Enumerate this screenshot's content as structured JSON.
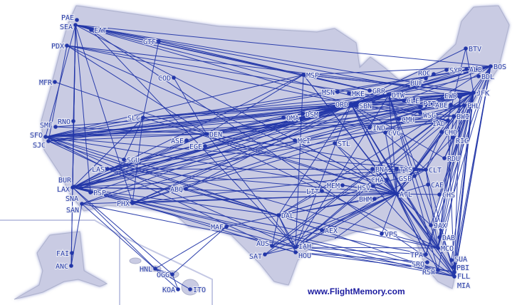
{
  "map": {
    "land_color": "#c9cbe3",
    "route_color": "#2236a8",
    "credit": "www.FlightMemory.com",
    "airports": [
      "PAE",
      "SEA",
      "EAT",
      "PDX",
      "GTF",
      "MFR",
      "COD",
      "SLC",
      "RNO",
      "SMF",
      "SFO",
      "SJC",
      "DEN",
      "EGE",
      "ASE",
      "SGU",
      "LAS",
      "BUR",
      "LAX",
      "SNA",
      "PSP",
      "SAN",
      "ABQ",
      "PHX",
      "MAF",
      "FAI",
      "ANC",
      "HNL",
      "OGG",
      "KOA",
      "ITO",
      "MSP",
      "MSN",
      "MKE",
      "GRR",
      "DTW",
      "ORD",
      "SBN",
      "CLE",
      "PIT",
      "WSG",
      "CMH",
      "IND",
      "CVG",
      "OMA",
      "DSM",
      "MCI",
      "STL",
      "BTV",
      "SYR",
      "ALB",
      "BOS",
      "BDL",
      "ROC",
      "BUF",
      "JFK",
      "EWR",
      "PHL",
      "ABE",
      "BWI",
      "IAD",
      "CHO",
      "RIC",
      "RDU",
      "CLT",
      "GSP",
      "TYS",
      "BNA",
      "CHA",
      "HSV",
      "MEM",
      "LIT",
      "ATL",
      "BHM",
      "CAE",
      "CHS",
      "DAL",
      "AEX",
      "VPS",
      "JAX",
      "DAB",
      "MCO",
      "TPA",
      "SRQ",
      "RSW",
      "SUA",
      "PBI",
      "FLL",
      "MIA",
      "AUS",
      "SAT",
      "IAH",
      "HOU"
    ],
    "routes": [
      [
        "SEA",
        "ORD"
      ],
      [
        "SEA",
        "JFK"
      ],
      [
        "SEA",
        "DTW"
      ],
      [
        "SEA",
        "MSP"
      ],
      [
        "SEA",
        "BOS"
      ],
      [
        "SEA",
        "SFO"
      ],
      [
        "SEA",
        "LAX"
      ],
      [
        "SEA",
        "ANC"
      ],
      [
        "SEA",
        "PHX"
      ],
      [
        "SEA",
        "ATL"
      ],
      [
        "SEA",
        "EWR"
      ],
      [
        "SEA",
        "IAD"
      ],
      [
        "PDX",
        "ORD"
      ],
      [
        "PDX",
        "DEN"
      ],
      [
        "PDX",
        "JFK"
      ],
      [
        "PDX",
        "SJC"
      ],
      [
        "PDX",
        "ATL"
      ],
      [
        "PDX",
        "CLE"
      ],
      [
        "EAT",
        "SEA"
      ],
      [
        "EAT",
        "MIA"
      ],
      [
        "EAT",
        "IAH"
      ],
      [
        "GTF",
        "SLC"
      ],
      [
        "GTF",
        "MSP"
      ],
      [
        "GTF",
        "SEA"
      ],
      [
        "GTF",
        "DTW"
      ],
      [
        "MFR",
        "DEN"
      ],
      [
        "COD",
        "DEN"
      ],
      [
        "SLC",
        "ORD"
      ],
      [
        "SLC",
        "ATL"
      ],
      [
        "SLC",
        "JFK"
      ],
      [
        "SLC",
        "LAX"
      ],
      [
        "SLC",
        "SFO"
      ],
      [
        "SLC",
        "DTW"
      ],
      [
        "SLC",
        "PHX"
      ],
      [
        "RNO",
        "LAX"
      ],
      [
        "RNO",
        "SEA"
      ],
      [
        "SMF",
        "ORD"
      ],
      [
        "SMF",
        "DEN"
      ],
      [
        "SFO",
        "JFK"
      ],
      [
        "SFO",
        "ORD"
      ],
      [
        "SFO",
        "EWR"
      ],
      [
        "SFO",
        "IAD"
      ],
      [
        "SFO",
        "BOS"
      ],
      [
        "SFO",
        "DEN"
      ],
      [
        "SFO",
        "ATL"
      ],
      [
        "SFO",
        "DFW"
      ],
      [
        "SFO",
        "PHL"
      ],
      [
        "SFO",
        "CLT"
      ],
      [
        "SFO",
        "IAH"
      ],
      [
        "SFO",
        "LAS"
      ],
      [
        "SFO",
        "MSP"
      ],
      [
        "SFO",
        "BWI"
      ],
      [
        "SFO",
        "MCO"
      ],
      [
        "SJC",
        "ORD"
      ],
      [
        "SJC",
        "DEN"
      ],
      [
        "SJC",
        "AUS"
      ],
      [
        "SJC",
        "JFK"
      ],
      [
        "SJC",
        "BOS"
      ],
      [
        "SJC",
        "DAL"
      ],
      [
        "DEN",
        "JFK"
      ],
      [
        "DEN",
        "ORD"
      ],
      [
        "DEN",
        "ATL"
      ],
      [
        "DEN",
        "IAD"
      ],
      [
        "DEN",
        "DTW"
      ],
      [
        "DEN",
        "BOS"
      ],
      [
        "DEN",
        "LAX"
      ],
      [
        "DEN",
        "MSP"
      ],
      [
        "DEN",
        "EWR"
      ],
      [
        "DEN",
        "IAH"
      ],
      [
        "DEN",
        "CLT"
      ],
      [
        "DEN",
        "PHL"
      ],
      [
        "DEN",
        "MCO"
      ],
      [
        "EGE",
        "ORD"
      ],
      [
        "ASE",
        "DEN"
      ],
      [
        "ASE",
        "LAX"
      ],
      [
        "LAS",
        "JFK"
      ],
      [
        "LAS",
        "ORD"
      ],
      [
        "LAS",
        "ATL"
      ],
      [
        "LAS",
        "DTW"
      ],
      [
        "LAS",
        "BOS"
      ],
      [
        "LAS",
        "CLT"
      ],
      [
        "LAS",
        "IAD"
      ],
      [
        "LAS",
        "DAL"
      ],
      [
        "SGU",
        "SLC"
      ],
      [
        "LAX",
        "JFK"
      ],
      [
        "LAX",
        "ORD"
      ],
      [
        "LAX",
        "ATL"
      ],
      [
        "LAX",
        "IAD"
      ],
      [
        "LAX",
        "BOS"
      ],
      [
        "LAX",
        "MIA"
      ],
      [
        "LAX",
        "IAH"
      ],
      [
        "LAX",
        "DAL"
      ],
      [
        "LAX",
        "HNL"
      ],
      [
        "LAX",
        "OGG"
      ],
      [
        "LAX",
        "DTW"
      ],
      [
        "LAX",
        "CLT"
      ],
      [
        "LAX",
        "PHL"
      ],
      [
        "LAX",
        "EWR"
      ],
      [
        "LAX",
        "MSP"
      ],
      [
        "LAX",
        "FLL"
      ],
      [
        "LAX",
        "TPA"
      ],
      [
        "LAX",
        "PHX"
      ],
      [
        "LAX",
        "ABQ"
      ],
      [
        "LAX",
        "SEA"
      ],
      [
        "BUR",
        "LAS"
      ],
      [
        "SNA",
        "ORD"
      ],
      [
        "SNA",
        "DEN"
      ],
      [
        "PSP",
        "SEA"
      ],
      [
        "PSP",
        "ORD"
      ],
      [
        "SAN",
        "ORD"
      ],
      [
        "SAN",
        "ATL"
      ],
      [
        "SAN",
        "JFK"
      ],
      [
        "SAN",
        "KOA"
      ],
      [
        "SAN",
        "ANC"
      ],
      [
        "SAN",
        "IAH"
      ],
      [
        "PHX",
        "ORD"
      ],
      [
        "PHX",
        "JFK"
      ],
      [
        "PHX",
        "ATL"
      ],
      [
        "PHX",
        "PHL"
      ],
      [
        "PHX",
        "CLT"
      ],
      [
        "PHX",
        "DTW"
      ],
      [
        "PHX",
        "HOU"
      ],
      [
        "ABQ",
        "DAL"
      ],
      [
        "ABQ",
        "ORD"
      ],
      [
        "MAF",
        "HNL"
      ],
      [
        "MAF",
        "OGG"
      ],
      [
        "MAF",
        "DAL"
      ],
      [
        "FAI",
        "ANC"
      ],
      [
        "ANC",
        "SEA"
      ],
      [
        "HNL",
        "OGG"
      ],
      [
        "OGG",
        "KOA"
      ],
      [
        "HNL",
        "ITO"
      ],
      [
        "MSP",
        "JFK"
      ],
      [
        "MSP",
        "ATL"
      ],
      [
        "MSP",
        "BOS"
      ],
      [
        "MSP",
        "DTW"
      ],
      [
        "MSP",
        "IAH"
      ],
      [
        "MSP",
        "MCO"
      ],
      [
        "MSP",
        "LGA"
      ],
      [
        "ORD",
        "JFK"
      ],
      [
        "ORD",
        "BOS"
      ],
      [
        "ORD",
        "ATL"
      ],
      [
        "ORD",
        "MIA"
      ],
      [
        "ORD",
        "DCA"
      ],
      [
        "ORD",
        "PHL"
      ],
      [
        "ORD",
        "MCO"
      ],
      [
        "ORD",
        "TPA"
      ],
      [
        "ORD",
        "FLL"
      ],
      [
        "ORD",
        "IAH"
      ],
      [
        "ORD",
        "DAL"
      ],
      [
        "ORD",
        "CLT"
      ],
      [
        "ORD",
        "RDU"
      ],
      [
        "ORD",
        "BWI"
      ],
      [
        "ORD",
        "EWR"
      ],
      [
        "ORD",
        "BDL"
      ],
      [
        "ORD",
        "SYR"
      ],
      [
        "ORD",
        "ALB"
      ],
      [
        "ORD",
        "BTV"
      ],
      [
        "DTW",
        "JFK"
      ],
      [
        "DTW",
        "BOS"
      ],
      [
        "DTW",
        "ATL"
      ],
      [
        "DTW",
        "MCO"
      ],
      [
        "DTW",
        "RSW"
      ],
      [
        "DTW",
        "PBI"
      ],
      [
        "DTW",
        "IAH"
      ],
      [
        "CLE",
        "BOS"
      ],
      [
        "CLE",
        "JFK"
      ],
      [
        "PIT",
        "JFK"
      ],
      [
        "CMH",
        "IAD"
      ],
      [
        "IND",
        "JFK"
      ],
      [
        "CVG",
        "ATL"
      ],
      [
        "CVG",
        "BOS"
      ],
      [
        "OMA",
        "ORD"
      ],
      [
        "DSM",
        "ORD"
      ],
      [
        "MCI",
        "ATL"
      ],
      [
        "MCI",
        "JFK"
      ],
      [
        "STL",
        "ATL"
      ],
      [
        "STL",
        "MIA"
      ],
      [
        "BTV",
        "JFK"
      ],
      [
        "BTV",
        "IAD"
      ],
      [
        "BOS",
        "ATL"
      ],
      [
        "BOS",
        "MIA"
      ],
      [
        "BOS",
        "FLL"
      ],
      [
        "BOS",
        "MCO"
      ],
      [
        "BOS",
        "TPA"
      ],
      [
        "BOS",
        "CLT"
      ],
      [
        "BOS",
        "RDU"
      ],
      [
        "BOS",
        "PBI"
      ],
      [
        "JFK",
        "ATL"
      ],
      [
        "JFK",
        "MIA"
      ],
      [
        "JFK",
        "FLL"
      ],
      [
        "JFK",
        "MCO"
      ],
      [
        "JFK",
        "TPA"
      ],
      [
        "JFK",
        "PBI"
      ],
      [
        "JFK",
        "RSW"
      ],
      [
        "JFK",
        "SUA"
      ],
      [
        "JFK",
        "CHS"
      ],
      [
        "JFK",
        "JAX"
      ],
      [
        "JFK",
        "RDU"
      ],
      [
        "JFK",
        "IAH"
      ],
      [
        "JFK",
        "DAL"
      ],
      [
        "JFK",
        "AUS"
      ],
      [
        "JFK",
        "SAT"
      ],
      [
        "EWR",
        "MCO"
      ],
      [
        "EWR",
        "FLL"
      ],
      [
        "PHL",
        "MCO"
      ],
      [
        "PHL",
        "ATL"
      ],
      [
        "BWI",
        "ATL"
      ],
      [
        "BWI",
        "MCO"
      ],
      [
        "IAD",
        "ATL"
      ],
      [
        "IAD",
        "IAH"
      ],
      [
        "IAD",
        "MIA"
      ],
      [
        "CHO",
        "CLT"
      ],
      [
        "RIC",
        "ATL"
      ],
      [
        "CLT",
        "MIA"
      ],
      [
        "CLT",
        "MCO"
      ],
      [
        "CLT",
        "DAL"
      ],
      [
        "CLT",
        "IAH"
      ],
      [
        "GSP",
        "ATL"
      ],
      [
        "TYS",
        "ATL"
      ],
      [
        "BNA",
        "ATL"
      ],
      [
        "CHA",
        "ATL"
      ],
      [
        "HSV",
        "DAL"
      ],
      [
        "MEM",
        "ATL"
      ],
      [
        "LIT",
        "DAL"
      ],
      [
        "ATL",
        "MIA"
      ],
      [
        "ATL",
        "MCO"
      ],
      [
        "ATL",
        "TPA"
      ],
      [
        "ATL",
        "FLL"
      ],
      [
        "ATL",
        "DAL"
      ],
      [
        "ATL",
        "IAH"
      ],
      [
        "ATL",
        "AUS"
      ],
      [
        "ATL",
        "SAT"
      ],
      [
        "ATL",
        "MSY"
      ],
      [
        "ATL",
        "VPS"
      ],
      [
        "ATL",
        "JAX"
      ],
      [
        "ATL",
        "RSW"
      ],
      [
        "ATL",
        "CHS"
      ],
      [
        "ATL",
        "CAE"
      ],
      [
        "BHM",
        "DAL"
      ],
      [
        "DAL",
        "IAH"
      ],
      [
        "DAL",
        "HOU"
      ],
      [
        "DAL",
        "AUS"
      ],
      [
        "DAL",
        "MIA"
      ],
      [
        "DAL",
        "MCO"
      ],
      [
        "AEX",
        "ATL"
      ],
      [
        "AEX",
        "DAL"
      ],
      [
        "IAH",
        "MCO"
      ],
      [
        "IAH",
        "TPA"
      ],
      [
        "IAH",
        "MIA"
      ],
      [
        "IAH",
        "FLL"
      ],
      [
        "HOU",
        "RSW"
      ],
      [
        "HOU",
        "SRQ"
      ],
      [
        "AUS",
        "HOU"
      ],
      [
        "SAT",
        "IAH"
      ]
    ]
  }
}
